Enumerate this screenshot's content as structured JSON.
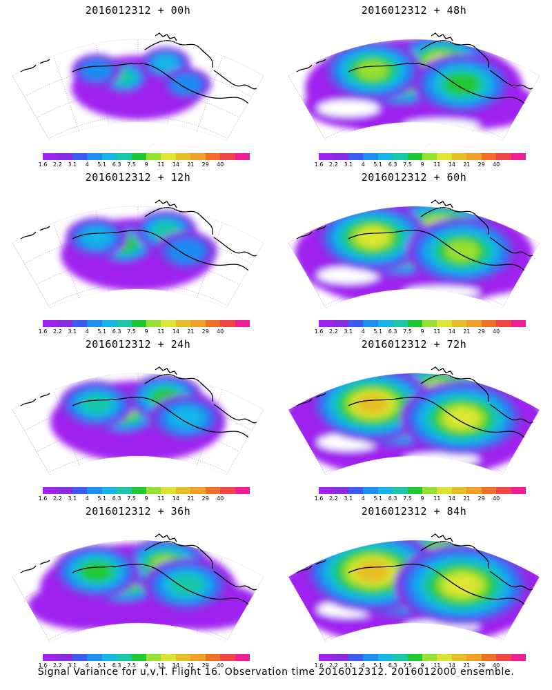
{
  "panels": [
    {
      "title": "2016012312 + 00h",
      "stage": 0
    },
    {
      "title": "2016012312 + 48h",
      "stage": 4
    },
    {
      "title": "2016012312 + 12h",
      "stage": 1
    },
    {
      "title": "2016012312 + 60h",
      "stage": 5
    },
    {
      "title": "2016012312 + 24h",
      "stage": 2
    },
    {
      "title": "2016012312 + 72h",
      "stage": 6
    },
    {
      "title": "2016012312 + 36h",
      "stage": 3
    },
    {
      "title": "2016012312 + 84h",
      "stage": 7
    }
  ],
  "colorbar": {
    "labels": [
      "1.6",
      "2.2",
      "3.1",
      "4",
      "5.1",
      "6.3",
      "7.5",
      "9",
      "11",
      "14",
      "21",
      "29",
      "40"
    ],
    "colors": [
      "#a020f0",
      "#8a2be2",
      "#3c5af0",
      "#1e8cf0",
      "#18b4e8",
      "#19c8a8",
      "#22c832",
      "#98e032",
      "#dce632",
      "#e6be28",
      "#f0a028",
      "#f07028",
      "#f04646",
      "#f01e96"
    ]
  },
  "caption": "Signal Variance for u,v,T. Flight 16. Observation time 2016012312. 2016012000 ensemble."
}
